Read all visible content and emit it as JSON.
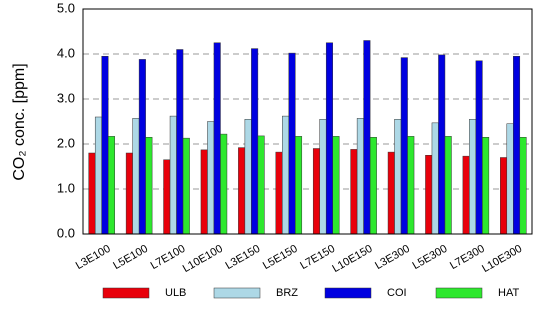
{
  "chart_data": {
    "type": "bar",
    "y_label": "CO₂ conc. [ppm]",
    "categories": [
      "L3E100",
      "L5E100",
      "L7E100",
      "L10E100",
      "L3E150",
      "L5E150",
      "L7E150",
      "L10E150",
      "L3E300",
      "L5E300",
      "L7E300",
      "L10E300"
    ],
    "series": [
      {
        "name": "ULB",
        "color": "#e8000b",
        "values": [
          1.8,
          1.8,
          1.65,
          1.87,
          1.92,
          1.82,
          1.9,
          1.88,
          1.82,
          1.75,
          1.73,
          1.7
        ]
      },
      {
        "name": "BRZ",
        "color": "#add8e6",
        "values": [
          2.6,
          2.57,
          2.62,
          2.5,
          2.55,
          2.62,
          2.55,
          2.57,
          2.55,
          2.47,
          2.55,
          2.45
        ]
      },
      {
        "name": "COI",
        "color": "#0000e0",
        "values": [
          3.95,
          3.88,
          4.1,
          4.25,
          4.12,
          4.02,
          4.25,
          4.3,
          3.92,
          3.98,
          3.85,
          3.95
        ]
      },
      {
        "name": "HAT",
        "color": "#2ee82e",
        "values": [
          2.17,
          2.15,
          2.13,
          2.22,
          2.18,
          2.17,
          2.17,
          2.15,
          2.17,
          2.17,
          2.15,
          2.15
        ]
      }
    ],
    "ylim": [
      0,
      5
    ],
    "yticks": [
      {
        "value": 0,
        "label": "0.0"
      },
      {
        "value": 1,
        "label": "1.0"
      },
      {
        "value": 2,
        "label": "2.0"
      },
      {
        "value": 3,
        "label": "3.0"
      },
      {
        "value": 4,
        "label": "4.0"
      },
      {
        "value": 5,
        "label": "5.0"
      }
    ],
    "grid": true,
    "legend": "bottom"
  }
}
